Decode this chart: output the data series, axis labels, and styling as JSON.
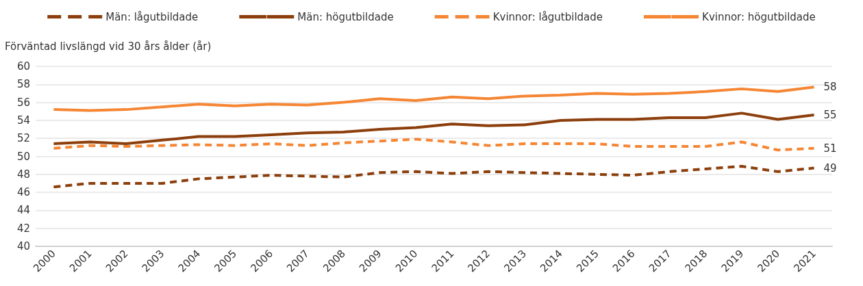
{
  "chart_data": {
    "type": "line",
    "ylabel": "Förväntad livslängd vid 30 års ålder (år)",
    "categories": [
      "2000",
      "2001",
      "2002",
      "2003",
      "2004",
      "2005",
      "2006",
      "2007",
      "2008",
      "2009",
      "2010",
      "2011",
      "2012",
      "2013",
      "2014",
      "2015",
      "2016",
      "2017",
      "2018",
      "2019",
      "2020",
      "2021"
    ],
    "series": [
      {
        "name": "Män: lågutbildade",
        "color": "#8c3f0c",
        "line_style": "dashed",
        "values": [
          46.6,
          47.0,
          47.0,
          47.0,
          47.5,
          47.7,
          47.9,
          47.8,
          47.7,
          48.2,
          48.3,
          48.1,
          48.3,
          48.2,
          48.1,
          48.0,
          47.9,
          48.3,
          48.6,
          48.9,
          48.3,
          48.7
        ],
        "value_labels": [
          null,
          null,
          null,
          null,
          null,
          null,
          null,
          null,
          null,
          null,
          null,
          null,
          null,
          null,
          null,
          null,
          null,
          null,
          null,
          null,
          null,
          "49"
        ]
      },
      {
        "name": "Män: högutbildade",
        "color": "#8c3f0c",
        "line_style": "solid",
        "values": [
          51.4,
          51.6,
          51.4,
          51.8,
          52.2,
          52.2,
          52.4,
          52.6,
          52.7,
          53.0,
          53.2,
          53.6,
          53.4,
          53.5,
          54.0,
          54.1,
          54.1,
          54.3,
          54.3,
          54.8,
          54.1,
          54.6
        ],
        "value_labels": [
          null,
          null,
          null,
          null,
          null,
          null,
          null,
          null,
          null,
          null,
          null,
          null,
          null,
          null,
          null,
          null,
          null,
          null,
          null,
          null,
          null,
          "55"
        ]
      },
      {
        "name": "Kvinnor: lågutbildade",
        "color": "#f58634",
        "line_style": "dashed",
        "values": [
          50.9,
          51.2,
          51.1,
          51.2,
          51.3,
          51.2,
          51.4,
          51.2,
          51.5,
          51.7,
          51.9,
          51.6,
          51.2,
          51.4,
          51.4,
          51.4,
          51.1,
          51.1,
          51.1,
          51.6,
          50.7,
          50.9
        ],
        "value_labels": [
          null,
          null,
          null,
          null,
          null,
          null,
          null,
          null,
          null,
          null,
          null,
          null,
          null,
          null,
          null,
          null,
          null,
          null,
          null,
          null,
          null,
          "51"
        ]
      },
      {
        "name": "Kvinnor: högutbildade",
        "color": "#f58634",
        "line_style": "solid",
        "values": [
          55.2,
          55.1,
          55.2,
          55.5,
          55.8,
          55.6,
          55.8,
          55.7,
          56.0,
          56.4,
          56.2,
          56.6,
          56.4,
          56.7,
          56.8,
          57.0,
          56.9,
          57.0,
          57.2,
          57.5,
          57.2,
          57.7
        ],
        "value_labels": [
          null,
          null,
          null,
          null,
          null,
          null,
          null,
          null,
          null,
          null,
          null,
          null,
          null,
          null,
          null,
          null,
          null,
          null,
          null,
          null,
          null,
          "58"
        ]
      }
    ],
    "ylim": [
      40,
      60
    ],
    "yticks": [
      40,
      42,
      44,
      46,
      48,
      50,
      52,
      54,
      56,
      58,
      60
    ],
    "grid": "y",
    "legend": "top",
    "marker": "none"
  }
}
